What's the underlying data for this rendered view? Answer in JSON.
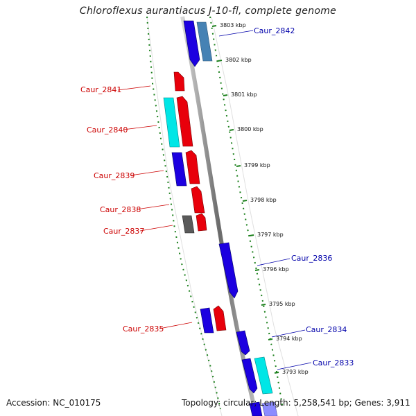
{
  "title": "Chloroflexus aurantiacus J-10-fl, complete genome",
  "footer": {
    "accession": "Accession: NC_010175",
    "summary": "Topology: circular; Length: 5,258,541 bp; Genes: 3,911"
  },
  "colors": {
    "forward": "#e8000b",
    "reverse": "#1c00e0",
    "cyan": "#00e6e6",
    "steelblue": "#4682b4",
    "gray": "#5a5a5a",
    "left_label": "#cc0000",
    "right_label": "#0000aa",
    "dots": "#1a7f1a"
  },
  "ticks": [
    {
      "label": "3803 kbp"
    },
    {
      "label": "3802 kbp"
    },
    {
      "label": "3801 kbp"
    },
    {
      "label": "3800 kbp"
    },
    {
      "label": "3799 kbp"
    },
    {
      "label": "3798 kbp"
    },
    {
      "label": "3797 kbp"
    },
    {
      "label": "3796 kbp"
    },
    {
      "label": "3795 kbp"
    },
    {
      "label": "3794 kbp"
    },
    {
      "label": "3793 kbp"
    }
  ],
  "left_labels": [
    "Caur_2841",
    "Caur_2840",
    "Caur_2839",
    "Caur_2838",
    "Caur_2837",
    "Caur_2835"
  ],
  "right_labels": [
    "Caur_2842",
    "Caur_2836",
    "Caur_2834",
    "Caur_2833"
  ]
}
